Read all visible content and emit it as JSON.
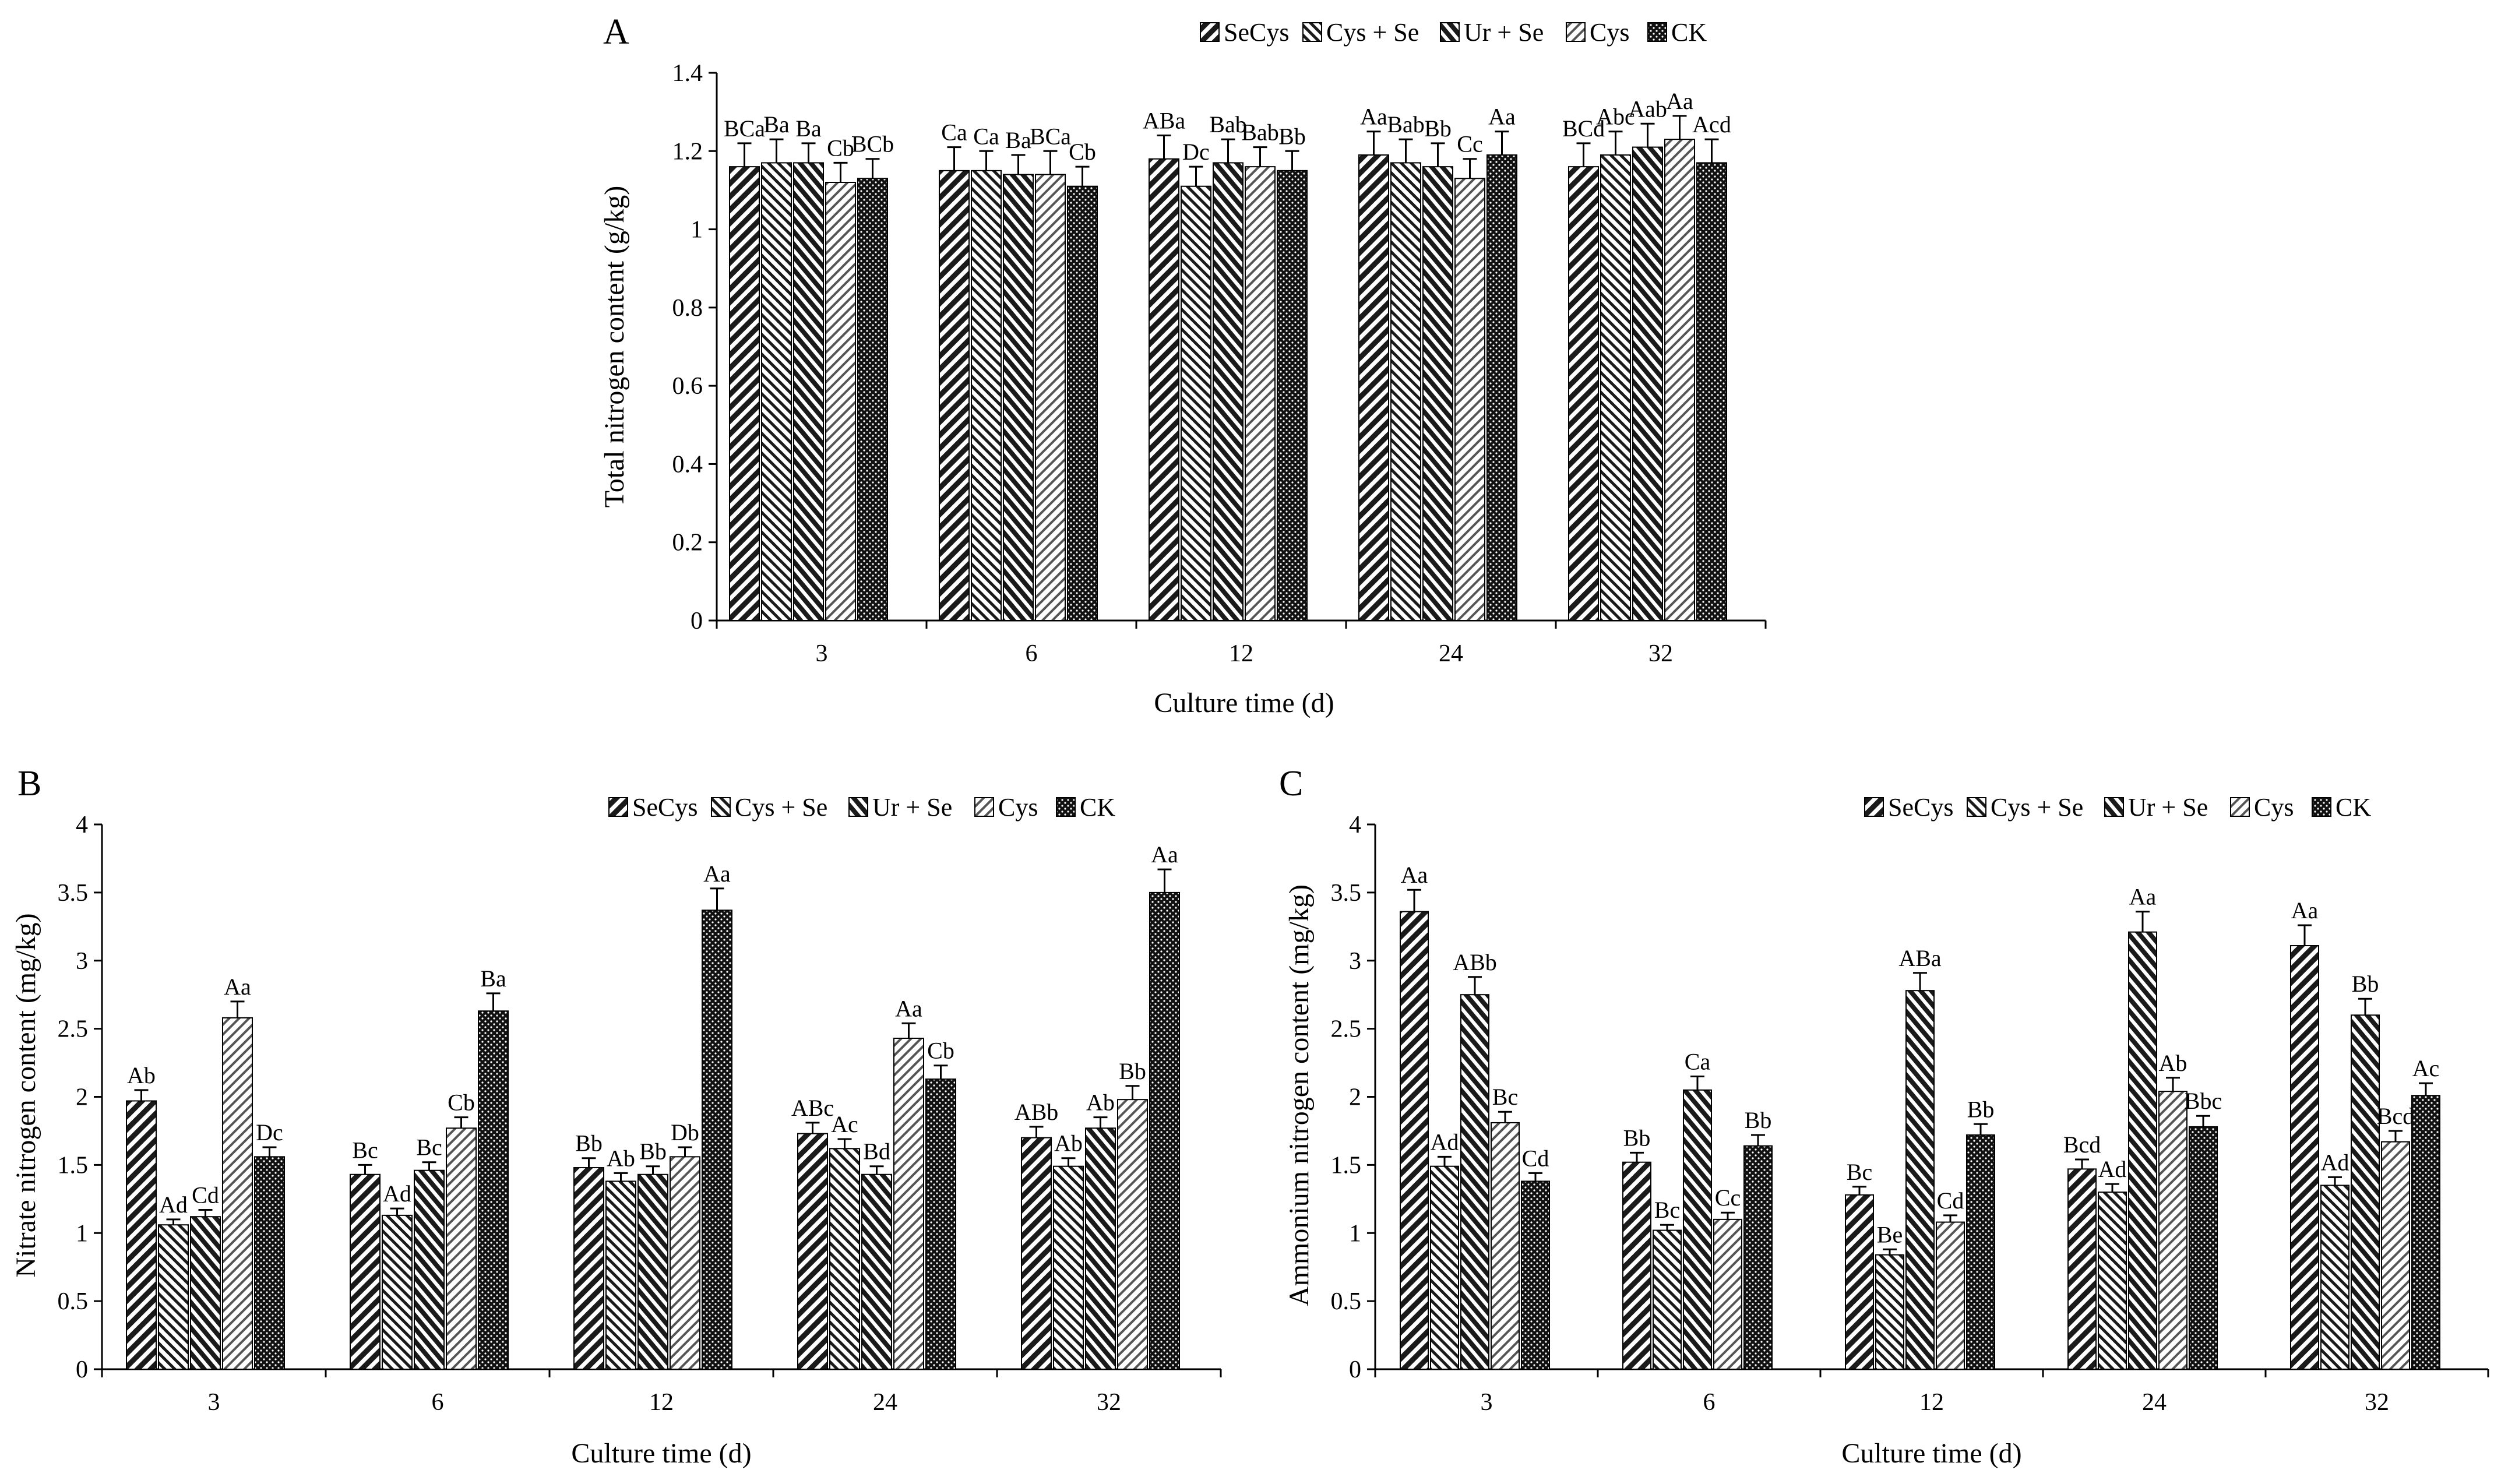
{
  "legend_labels": [
    "SeCys",
    "Cys + Se",
    "Ur + Se",
    "Cys",
    "CK"
  ],
  "chart_data": [
    {
      "type": "bar",
      "panel_label": "A",
      "title": "",
      "xlabel": "Culture time (d)",
      "ylabel": "Total nitrogen content (g/kg)",
      "categories": [
        "3",
        "6",
        "12",
        "24",
        "32"
      ],
      "ylim": [
        0,
        1.4
      ],
      "yticks": [
        "0",
        "0.2",
        "0.4",
        "0.6",
        "0.8",
        "1",
        "1.2",
        "1.4"
      ],
      "legend_position": "top-right",
      "series": [
        {
          "name": "SeCys",
          "values": [
            1.16,
            1.15,
            1.18,
            1.19,
            1.16
          ],
          "errors": [
            0.06,
            0.06,
            0.06,
            0.06,
            0.06
          ],
          "labels": [
            "BCa",
            "Ca",
            "ABa",
            "Aa",
            "BCd"
          ]
        },
        {
          "name": "Cys + Se",
          "values": [
            1.17,
            1.15,
            1.11,
            1.17,
            1.19
          ],
          "errors": [
            0.06,
            0.05,
            0.05,
            0.06,
            0.06
          ],
          "labels": [
            "Ba",
            "Ca",
            "Dc",
            "Bab",
            "Abc"
          ]
        },
        {
          "name": "Ur + Se",
          "values": [
            1.17,
            1.14,
            1.17,
            1.16,
            1.21
          ],
          "errors": [
            0.05,
            0.05,
            0.06,
            0.06,
            0.06
          ],
          "labels": [
            "Ba",
            "Ba",
            "Bab",
            "Bb",
            "Aab"
          ]
        },
        {
          "name": "Cys",
          "values": [
            1.12,
            1.14,
            1.16,
            1.13,
            1.23
          ],
          "errors": [
            0.05,
            0.06,
            0.05,
            0.05,
            0.06
          ],
          "labels": [
            "Cb",
            "BCa",
            "Bab",
            "Cc",
            "Aa"
          ]
        },
        {
          "name": "CK",
          "values": [
            1.13,
            1.11,
            1.15,
            1.19,
            1.17
          ],
          "errors": [
            0.05,
            0.05,
            0.05,
            0.06,
            0.06
          ],
          "labels": [
            "BCb",
            "Cb",
            "Bb",
            "Aa",
            "Acd"
          ]
        }
      ]
    },
    {
      "type": "bar",
      "panel_label": "B",
      "title": "",
      "xlabel": "Culture time (d)",
      "ylabel": "Nitrate nitrogen content (mg/kg)",
      "categories": [
        "3",
        "6",
        "12",
        "24",
        "32"
      ],
      "ylim": [
        0,
        4
      ],
      "yticks": [
        "0",
        "0.5",
        "1",
        "1.5",
        "2",
        "2.5",
        "3",
        "3.5",
        "4"
      ],
      "legend_position": "top-right",
      "series": [
        {
          "name": "SeCys",
          "values": [
            1.97,
            1.43,
            1.48,
            1.73,
            1.7
          ],
          "errors": [
            0.08,
            0.07,
            0.07,
            0.08,
            0.08
          ],
          "labels": [
            "Ab",
            "Bc",
            "Bb",
            "ABc",
            "ABb"
          ]
        },
        {
          "name": "Cys + Se",
          "values": [
            1.06,
            1.13,
            1.38,
            1.62,
            1.49
          ],
          "errors": [
            0.04,
            0.05,
            0.06,
            0.07,
            0.06
          ],
          "labels": [
            "Ad",
            "Ad",
            "Ab",
            "Ac",
            "Ab"
          ]
        },
        {
          "name": "Ur + Se",
          "values": [
            1.12,
            1.46,
            1.43,
            1.43,
            1.77
          ],
          "errors": [
            0.05,
            0.06,
            0.06,
            0.06,
            0.08
          ],
          "labels": [
            "Cd",
            "Bc",
            "Bb",
            "Bd",
            "Ab"
          ]
        },
        {
          "name": "Cys",
          "values": [
            2.58,
            1.77,
            1.56,
            2.43,
            1.98
          ],
          "errors": [
            0.12,
            0.08,
            0.07,
            0.11,
            0.1
          ],
          "labels": [
            "Aa",
            "Cb",
            "Db",
            "Aa",
            "Bb"
          ]
        },
        {
          "name": "CK",
          "values": [
            1.56,
            2.63,
            3.37,
            2.13,
            3.5
          ],
          "errors": [
            0.07,
            0.13,
            0.16,
            0.1,
            0.17
          ],
          "labels": [
            "Dc",
            "Ba",
            "Aa",
            "Cb",
            "Aa"
          ]
        }
      ]
    },
    {
      "type": "bar",
      "panel_label": "C",
      "title": "",
      "xlabel": "Culture time (d)",
      "ylabel": "Ammonium nitrogen content (mg/kg)",
      "categories": [
        "3",
        "6",
        "12",
        "24",
        "32"
      ],
      "ylim": [
        0,
        4
      ],
      "yticks": [
        "0",
        "0.5",
        "1",
        "1.5",
        "2",
        "2.5",
        "3",
        "3.5",
        "4"
      ],
      "legend_position": "top-right",
      "series": [
        {
          "name": "SeCys",
          "values": [
            3.36,
            1.52,
            1.28,
            1.47,
            3.11
          ],
          "errors": [
            0.16,
            0.07,
            0.06,
            0.07,
            0.15
          ],
          "labels": [
            "Aa",
            "Bb",
            "Bc",
            "Bcd",
            "Aa"
          ]
        },
        {
          "name": "Cys + Se",
          "values": [
            1.49,
            1.02,
            0.84,
            1.3,
            1.35
          ],
          "errors": [
            0.07,
            0.04,
            0.04,
            0.06,
            0.06
          ],
          "labels": [
            "Ad",
            "Bc",
            "Be",
            "Ad",
            "Ad"
          ]
        },
        {
          "name": "Ur + Se",
          "values": [
            2.75,
            2.05,
            2.78,
            3.21,
            2.6
          ],
          "errors": [
            0.13,
            0.1,
            0.13,
            0.15,
            0.12
          ],
          "labels": [
            "ABb",
            "Ca",
            "ABa",
            "Aa",
            "Bb"
          ]
        },
        {
          "name": "Cys",
          "values": [
            1.81,
            1.1,
            1.08,
            2.04,
            1.67
          ],
          "errors": [
            0.08,
            0.05,
            0.05,
            0.1,
            0.08
          ],
          "labels": [
            "Bc",
            "Cc",
            "Cd",
            "Ab",
            "Bcd"
          ]
        },
        {
          "name": "CK",
          "values": [
            1.38,
            1.64,
            1.72,
            1.78,
            2.01
          ],
          "errors": [
            0.06,
            0.08,
            0.08,
            0.08,
            0.09
          ],
          "labels": [
            "Cd",
            "Bb",
            "Bb",
            "Bbc",
            "Ac"
          ]
        }
      ]
    }
  ]
}
